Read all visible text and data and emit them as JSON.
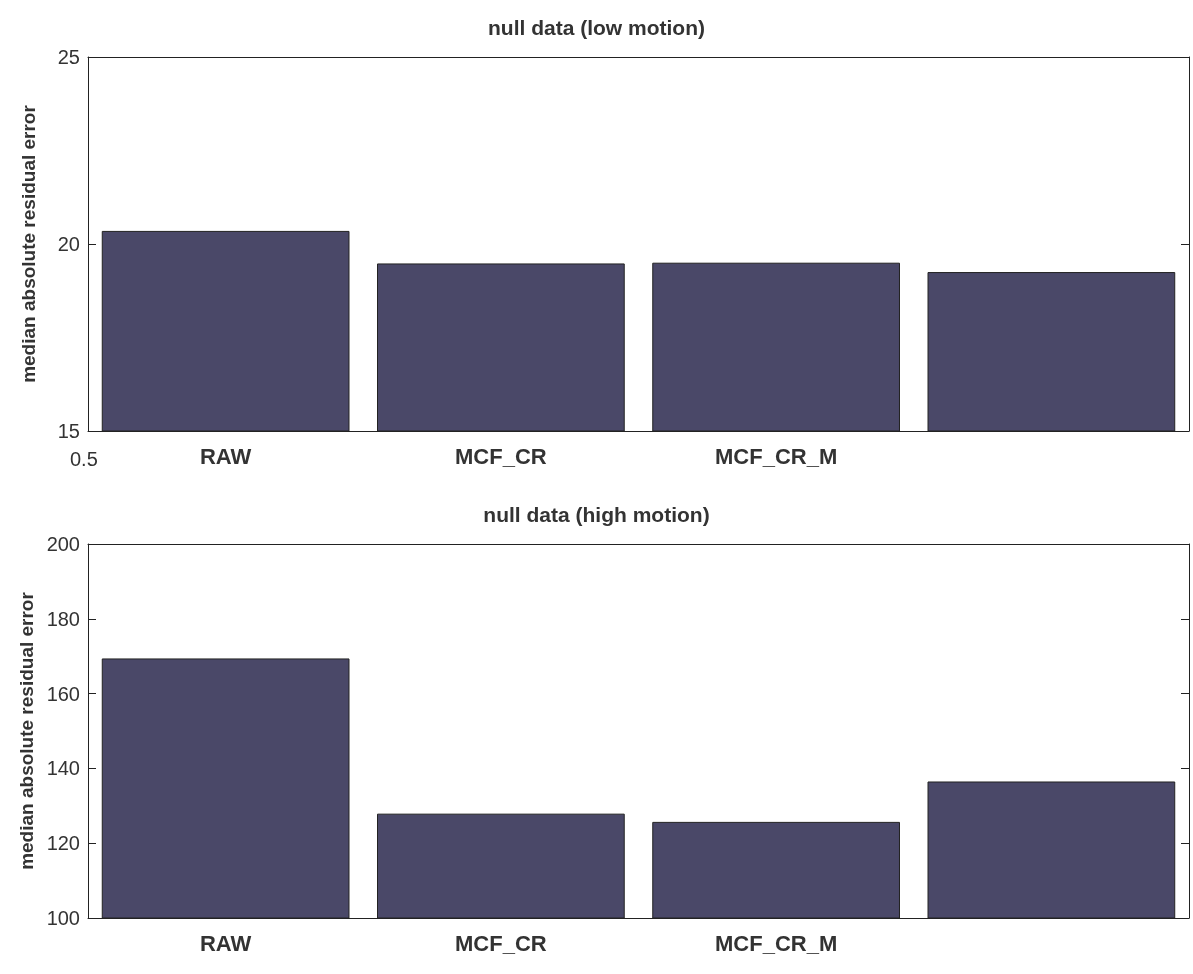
{
  "chart_data": [
    {
      "type": "bar",
      "title": "null data (low motion)",
      "ylabel": "median absolute residual error",
      "categories": [
        "RAW",
        "MCF_CR",
        "MCF_CR_M",
        null
      ],
      "values": [
        20.35,
        19.48,
        19.5,
        19.25
      ],
      "color": "#4a4868",
      "ylim": [
        15,
        25
      ],
      "yticks": [
        15,
        20,
        25
      ],
      "grid": false,
      "annotations": [
        "0.5"
      ]
    },
    {
      "type": "bar",
      "title": "null data (high motion)",
      "ylabel": "median absolute residual error",
      "categories": [
        "RAW",
        "MCF_CR",
        "MCF_CR_M",
        null
      ],
      "values": [
        169.4,
        127.9,
        125.7,
        136.5
      ],
      "color": "#4a4868",
      "ylim": [
        100,
        200
      ],
      "yticks": [
        100,
        120,
        140,
        160,
        180,
        200
      ],
      "grid": false
    }
  ]
}
